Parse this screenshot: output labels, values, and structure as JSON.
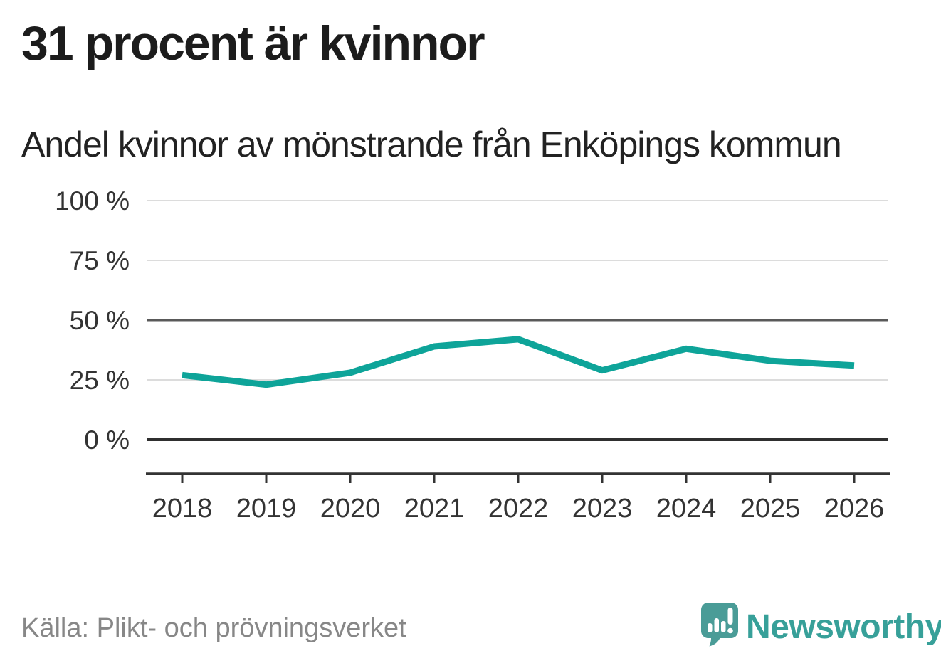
{
  "header": {
    "title": "31 procent är kvinnor",
    "subtitle": "Andel kvinnor av mönstrande från Enköpings kommun"
  },
  "footer": {
    "source": "Källa: Plikt- och prövningsverket",
    "brand": "Newsworthy"
  },
  "colors": {
    "line": "#0ea499",
    "grid_light": "#dcdcdc",
    "grid_mid": "#595959",
    "grid_zero": "#2f2f2f",
    "axis": "#333333",
    "tick_text": "#333333",
    "source_text": "#878787",
    "logo_teal": "#4a9c97",
    "wordmark_teal": "#37a099"
  },
  "chart_data": {
    "type": "line",
    "title": "31 procent är kvinnor",
    "subtitle": "Andel kvinnor av mönstrande från Enköpings kommun",
    "x": [
      2018,
      2019,
      2020,
      2021,
      2022,
      2023,
      2024,
      2025,
      2026
    ],
    "series": [
      {
        "name": "Andel kvinnor av mönstrande (%)",
        "values": [
          27,
          23,
          28,
          39,
          42,
          29,
          38,
          33,
          31
        ]
      }
    ],
    "xlabel": "",
    "ylabel": "",
    "ylim": [
      0,
      100
    ],
    "yticks": [
      0,
      25,
      50,
      75,
      100
    ],
    "ytick_suffix": " %",
    "grid": "horizontal",
    "emphasized_gridlines": [
      0,
      50
    ],
    "legend": "none"
  }
}
